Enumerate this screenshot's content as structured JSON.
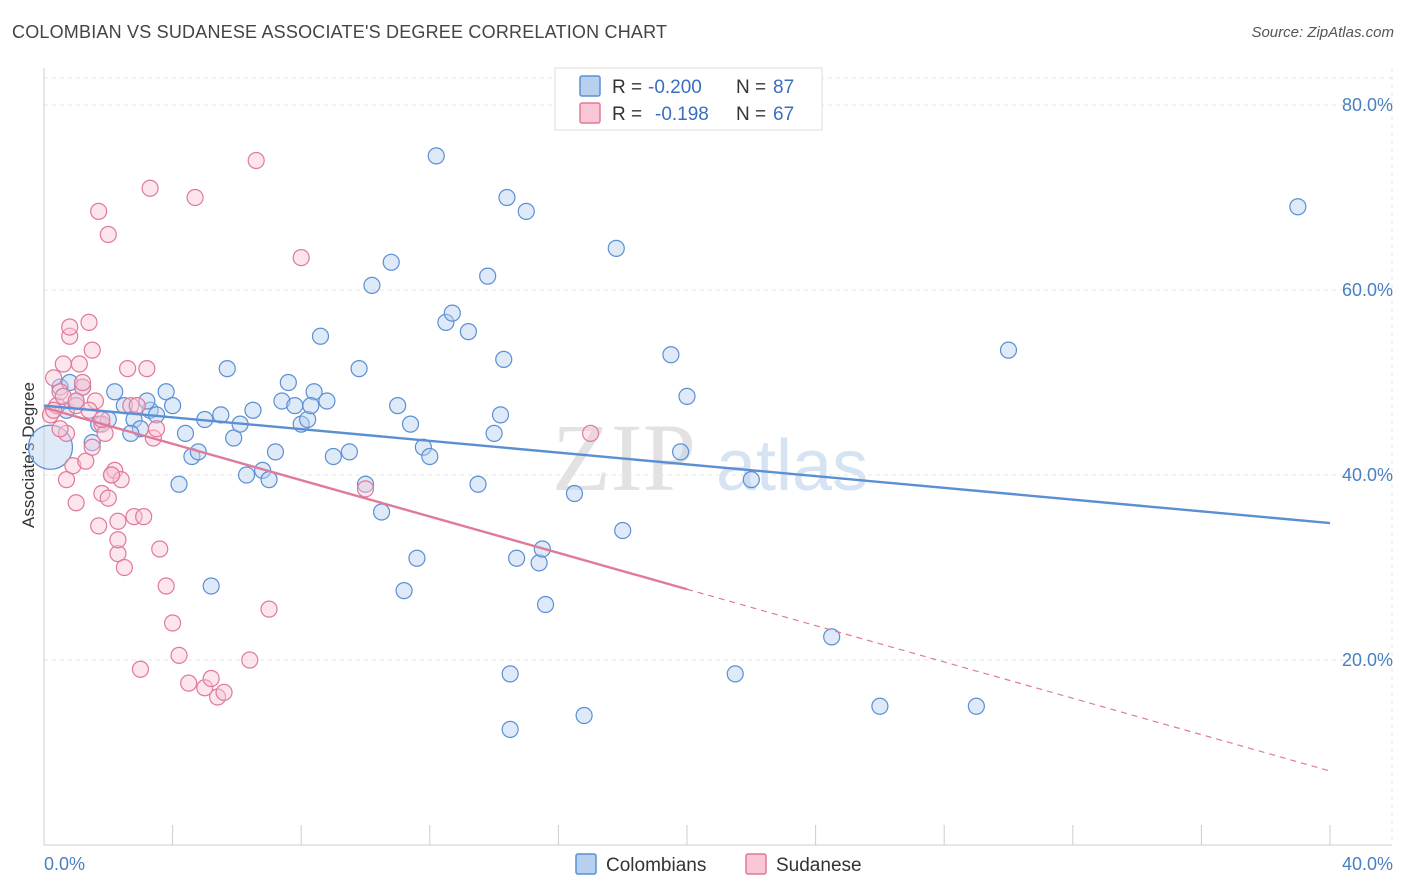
{
  "header": {
    "title": "COLOMBIAN VS SUDANESE ASSOCIATE'S DEGREE CORRELATION CHART",
    "source": "Source: ZipAtlas.com"
  },
  "watermark": {
    "zip": "ZIP",
    "atlas": "atlas"
  },
  "legend": {
    "r_label": "R =",
    "n_label": "N =",
    "rows": [
      {
        "r": "-0.200",
        "n": "87",
        "color": "#5b8fd4",
        "fill": "#b8d0f0"
      },
      {
        "r": "-0.198",
        "n": "67",
        "color": "#e07a9a",
        "fill": "#f8c6d4"
      }
    ]
  },
  "bottom_legend": {
    "items": [
      {
        "label": "Colombians",
        "color": "#5b8fd4",
        "fill": "#b8d0f0"
      },
      {
        "label": "Sudanese",
        "color": "#e07a9a",
        "fill": "#f8c6d4"
      }
    ]
  },
  "chart_data": {
    "type": "scatter",
    "title": "COLOMBIAN VS SUDANESE ASSOCIATE'S DEGREE CORRELATION CHART",
    "xlabel": "",
    "ylabel": "Associate's Degree",
    "xlim": [
      0,
      40
    ],
    "ylim": [
      0,
      84
    ],
    "x_tick_labels": [
      {
        "value": 0,
        "label": "0.0%"
      },
      {
        "value": 40,
        "label": "40.0%"
      }
    ],
    "y_tick_labels": [
      {
        "value": 20,
        "label": "20.0%"
      },
      {
        "value": 40,
        "label": "40.0%"
      },
      {
        "value": 60,
        "label": "60.0%"
      },
      {
        "value": 80,
        "label": "80.0%"
      }
    ],
    "grid": true,
    "legend_position": "top-center",
    "series": [
      {
        "name": "Colombians",
        "color": "#5b8fd4",
        "fill": "#b8d0f0",
        "trend": {
          "x": [
            0,
            40
          ],
          "y": [
            47.5,
            34.8
          ],
          "dashed_from": null
        },
        "points": [
          [
            0.2,
            43.0
          ],
          [
            0.5,
            49.5
          ],
          [
            0.7,
            47.0
          ],
          [
            0.8,
            50.0
          ],
          [
            1.0,
            48.0
          ],
          [
            1.2,
            49.5
          ],
          [
            1.5,
            43.5
          ],
          [
            1.7,
            45.5
          ],
          [
            2.0,
            46.0
          ],
          [
            2.2,
            49.0
          ],
          [
            2.5,
            47.5
          ],
          [
            2.8,
            46.0
          ],
          [
            3.0,
            45.0
          ],
          [
            3.3,
            47.0
          ],
          [
            3.5,
            46.5
          ],
          [
            3.8,
            49.0
          ],
          [
            4.0,
            47.5
          ],
          [
            4.2,
            39.0
          ],
          [
            4.4,
            44.5
          ],
          [
            4.6,
            42.0
          ],
          [
            4.8,
            42.5
          ],
          [
            5.0,
            46.0
          ],
          [
            5.2,
            28.0
          ],
          [
            5.5,
            46.5
          ],
          [
            5.7,
            51.5
          ],
          [
            5.9,
            44.0
          ],
          [
            6.1,
            45.5
          ],
          [
            6.3,
            40.0
          ],
          [
            6.5,
            47.0
          ],
          [
            6.8,
            40.5
          ],
          [
            7.0,
            39.5
          ],
          [
            7.2,
            42.5
          ],
          [
            7.4,
            48.0
          ],
          [
            7.6,
            50.0
          ],
          [
            7.8,
            47.5
          ],
          [
            8.0,
            45.5
          ],
          [
            8.2,
            46.0
          ],
          [
            8.4,
            49.0
          ],
          [
            8.6,
            55.0
          ],
          [
            8.8,
            48.0
          ],
          [
            9.0,
            42.0
          ],
          [
            9.5,
            42.5
          ],
          [
            9.8,
            51.5
          ],
          [
            10.0,
            39.0
          ],
          [
            10.2,
            60.5
          ],
          [
            10.5,
            36.0
          ],
          [
            10.8,
            63.0
          ],
          [
            11.0,
            47.5
          ],
          [
            11.2,
            27.5
          ],
          [
            11.4,
            45.5
          ],
          [
            11.6,
            31.0
          ],
          [
            11.8,
            43.0
          ],
          [
            12.0,
            42.0
          ],
          [
            12.2,
            74.5
          ],
          [
            12.5,
            56.5
          ],
          [
            12.7,
            57.5
          ],
          [
            13.2,
            55.5
          ],
          [
            13.5,
            39.0
          ],
          [
            13.8,
            61.5
          ],
          [
            14.0,
            44.5
          ],
          [
            14.3,
            52.5
          ],
          [
            14.5,
            18.5
          ],
          [
            14.7,
            31.0
          ],
          [
            15.0,
            68.5
          ],
          [
            15.4,
            30.5
          ],
          [
            14.5,
            12.5
          ],
          [
            14.2,
            46.5
          ],
          [
            14.4,
            70.0
          ],
          [
            15.6,
            26.0
          ],
          [
            15.5,
            32.0
          ],
          [
            16.5,
            38.0
          ],
          [
            16.8,
            14.0
          ],
          [
            17.8,
            64.5
          ],
          [
            18.0,
            34.0
          ],
          [
            19.5,
            53.0
          ],
          [
            19.8,
            42.5
          ],
          [
            20.0,
            48.5
          ],
          [
            21.5,
            18.5
          ],
          [
            22.0,
            39.5
          ],
          [
            24.5,
            22.5
          ],
          [
            26.0,
            15.0
          ],
          [
            29.0,
            15.0
          ],
          [
            30.0,
            53.5
          ],
          [
            39.0,
            69.0
          ],
          [
            2.7,
            44.5
          ],
          [
            3.2,
            48.0
          ],
          [
            8.3,
            47.5
          ]
        ]
      },
      {
        "name": "Sudanese",
        "color": "#e07a9a",
        "fill": "#f8c6d4",
        "trend": {
          "x": [
            0,
            40
          ],
          "y": [
            47.3,
            8.0
          ],
          "dashed_from": 20
        },
        "points": [
          [
            0.2,
            46.5
          ],
          [
            0.3,
            50.5
          ],
          [
            0.4,
            47.5
          ],
          [
            0.5,
            49.0
          ],
          [
            0.6,
            52.0
          ],
          [
            0.7,
            44.5
          ],
          [
            0.7,
            39.5
          ],
          [
            0.8,
            55.0
          ],
          [
            0.8,
            56.0
          ],
          [
            0.9,
            41.0
          ],
          [
            1.0,
            37.0
          ],
          [
            1.0,
            47.5
          ],
          [
            1.1,
            52.0
          ],
          [
            1.2,
            49.5
          ],
          [
            1.3,
            41.5
          ],
          [
            1.4,
            56.5
          ],
          [
            1.5,
            53.5
          ],
          [
            1.5,
            43.0
          ],
          [
            1.6,
            48.0
          ],
          [
            1.7,
            34.5
          ],
          [
            1.7,
            68.5
          ],
          [
            1.8,
            38.0
          ],
          [
            1.8,
            45.5
          ],
          [
            1.9,
            44.5
          ],
          [
            2.0,
            66.0
          ],
          [
            2.0,
            37.5
          ],
          [
            2.1,
            40.0
          ],
          [
            2.2,
            40.5
          ],
          [
            2.3,
            31.5
          ],
          [
            2.3,
            35.0
          ],
          [
            2.4,
            39.5
          ],
          [
            2.5,
            30.0
          ],
          [
            2.6,
            51.5
          ],
          [
            2.7,
            47.5
          ],
          [
            2.8,
            35.5
          ],
          [
            2.9,
            47.5
          ],
          [
            3.0,
            19.0
          ],
          [
            3.1,
            35.5
          ],
          [
            3.2,
            51.5
          ],
          [
            3.3,
            71.0
          ],
          [
            3.4,
            44.0
          ],
          [
            3.5,
            45.0
          ],
          [
            3.6,
            32.0
          ],
          [
            3.8,
            28.0
          ],
          [
            4.0,
            24.0
          ],
          [
            4.2,
            20.5
          ],
          [
            4.5,
            17.5
          ],
          [
            4.7,
            70.0
          ],
          [
            5.0,
            17.0
          ],
          [
            5.2,
            18.0
          ],
          [
            5.4,
            16.0
          ],
          [
            5.6,
            16.5
          ],
          [
            6.4,
            20.0
          ],
          [
            6.6,
            74.0
          ],
          [
            7.0,
            25.5
          ],
          [
            8.0,
            63.5
          ],
          [
            10.0,
            38.5
          ],
          [
            17.0,
            44.5
          ],
          [
            0.3,
            47.0
          ],
          [
            0.6,
            48.5
          ],
          [
            1.2,
            50.0
          ],
          [
            1.4,
            47.0
          ],
          [
            1.8,
            46.0
          ],
          [
            2.1,
            40.0
          ],
          [
            2.3,
            33.0
          ],
          [
            1.0,
            48.0
          ],
          [
            0.5,
            45.0
          ]
        ]
      }
    ]
  }
}
